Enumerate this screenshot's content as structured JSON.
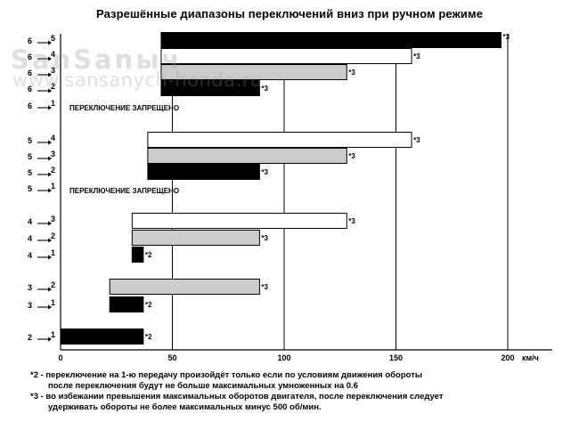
{
  "title": "Разрешённые диапазоны переключений вниз при ручном  режиме",
  "watermark": {
    "logo_text": "SanSanыч",
    "url": "www.sansanych-honda.ru"
  },
  "notes": [
    {
      "line1": "*2 - переключение на 1-ю передачу произойдёт только если по условиям движения обороты",
      "line2": "после переключения будут не больше максимальных умноженных на 0.6"
    },
    {
      "line1": "*3 - во избежании превышения максимальных оборотов двигателя, после переключения следует",
      "line2": "удерживать обороты не более максимальных минус 500 об/мин."
    }
  ],
  "chart_data": {
    "type": "bar",
    "orientation": "horizontal",
    "xlabel": "км/ч",
    "xlim": [
      0,
      220
    ],
    "xticks": [
      0,
      50,
      100,
      150,
      200
    ],
    "grid": "vertical at 50, 100, 150, 200",
    "colors": {
      "black": "#000000",
      "gray": "#cccccc",
      "white": "#ffffff"
    },
    "rows": [
      {
        "from": "6",
        "to": "5",
        "fill": "black",
        "x_start": 45,
        "x_end": 197,
        "note": "*3"
      },
      {
        "from": "6",
        "to": "4",
        "fill": "white",
        "x_start": 45,
        "x_end": 157,
        "note": "*3"
      },
      {
        "from": "6",
        "to": "3",
        "fill": "gray",
        "x_start": 45,
        "x_end": 128,
        "note": "*3"
      },
      {
        "from": "6",
        "to": "2",
        "fill": "black",
        "x_start": 45,
        "x_end": 89,
        "note": "*3"
      },
      {
        "from": "6",
        "to": "1",
        "prohibited": true,
        "label": "ПЕРЕКЛЮЧЕНИЕ ЗАПРЕЩЕНО"
      },
      {
        "from": "5",
        "to": "4",
        "fill": "white",
        "x_start": 39,
        "x_end": 157,
        "note": "*3"
      },
      {
        "from": "5",
        "to": "3",
        "fill": "gray",
        "x_start": 39,
        "x_end": 128,
        "note": "*3"
      },
      {
        "from": "5",
        "to": "2",
        "fill": "black",
        "x_start": 39,
        "x_end": 89,
        "note": "*3"
      },
      {
        "from": "5",
        "to": "1",
        "prohibited": true,
        "label": "ПЕРЕКЛЮЧЕНИЕ ЗАПРЕЩЕНО"
      },
      {
        "from": "4",
        "to": "3",
        "fill": "white",
        "x_start": 32,
        "x_end": 128,
        "note": "*3"
      },
      {
        "from": "4",
        "to": "2",
        "fill": "gray",
        "x_start": 32,
        "x_end": 89,
        "note": "*3"
      },
      {
        "from": "4",
        "to": "1",
        "fill": "black",
        "x_start": 32,
        "x_end": 37,
        "note": "*2"
      },
      {
        "from": "3",
        "to": "2",
        "fill": "gray",
        "x_start": 22,
        "x_end": 89,
        "note": "*3"
      },
      {
        "from": "3",
        "to": "1",
        "fill": "black",
        "x_start": 22,
        "x_end": 37,
        "note": "*2"
      },
      {
        "from": "2",
        "to": "1",
        "fill": "black",
        "x_start": 0,
        "x_end": 37,
        "note": "*2"
      }
    ]
  }
}
